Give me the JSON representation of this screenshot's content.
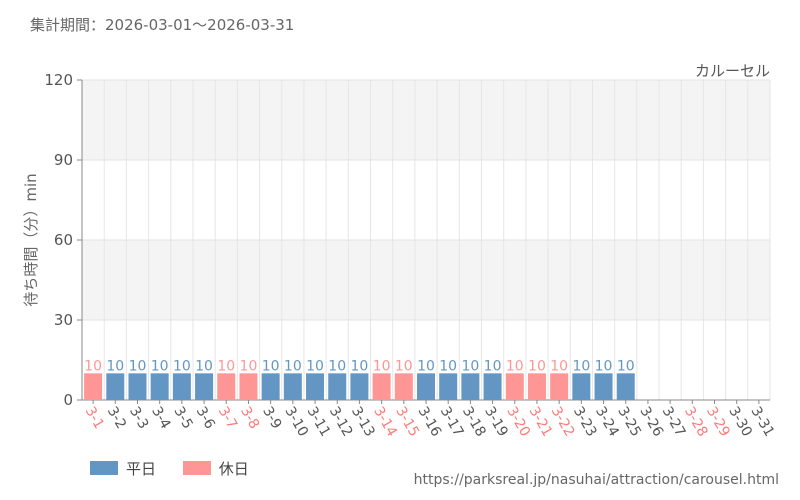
{
  "header": {
    "period_text": "集計期間：2026-03-01～2026-03-31",
    "attraction_name": "カルーセル"
  },
  "legend": [
    {
      "label": "平日",
      "color": "#6496c3"
    },
    {
      "label": "休日",
      "color": "#ff9696"
    }
  ],
  "footer": {
    "source_url": "https://parksreal.jp/nasuhai/attraction/carousel.html"
  },
  "chart_data": {
    "type": "bar",
    "ylabel": "待ち時間（分）min",
    "xlabel": "",
    "ylim": [
      0,
      120
    ],
    "yticks": [
      0,
      30,
      60,
      90,
      120
    ],
    "grid": true,
    "legend_position": "bottom-left",
    "categories": [
      "3-1",
      "3-2",
      "3-3",
      "3-4",
      "3-5",
      "3-6",
      "3-7",
      "3-8",
      "3-9",
      "3-10",
      "3-11",
      "3-12",
      "3-13",
      "3-14",
      "3-15",
      "3-16",
      "3-17",
      "3-18",
      "3-19",
      "3-20",
      "3-21",
      "3-22",
      "3-23",
      "3-24",
      "3-25",
      "3-26",
      "3-27",
      "3-28",
      "3-29",
      "3-30",
      "3-31"
    ],
    "day_type": [
      "holiday",
      "weekday",
      "weekday",
      "weekday",
      "weekday",
      "weekday",
      "holiday",
      "holiday",
      "weekday",
      "weekday",
      "weekday",
      "weekday",
      "weekday",
      "holiday",
      "holiday",
      "weekday",
      "weekday",
      "weekday",
      "weekday",
      "holiday",
      "holiday",
      "holiday",
      "weekday",
      "weekday",
      "weekday",
      "weekday",
      "weekday",
      "holiday",
      "holiday",
      "weekday",
      "weekday"
    ],
    "values": [
      10,
      10,
      10,
      10,
      10,
      10,
      10,
      10,
      10,
      10,
      10,
      10,
      10,
      10,
      10,
      10,
      10,
      10,
      10,
      10,
      10,
      10,
      10,
      10,
      10,
      null,
      null,
      null,
      null,
      null,
      null
    ],
    "colors": {
      "weekday": "#6496c3",
      "holiday": "#ff9696",
      "weekday_label": "#555555",
      "holiday_label": "#ff7a7a"
    }
  }
}
